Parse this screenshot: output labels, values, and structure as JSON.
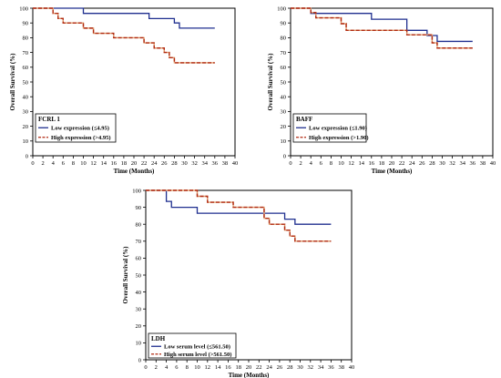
{
  "colors": {
    "low": "#1f2f8f",
    "high": "#b12a12",
    "high_dash_inner": "#e0a070"
  },
  "chart_data": [
    {
      "type": "line",
      "subtype": "kaplan-meier",
      "panel": "top-left",
      "title": "",
      "xlabel": "Time (Months)",
      "ylabel": "Overall Survival   (%)",
      "xlim": [
        0,
        40
      ],
      "ylim": [
        0,
        100
      ],
      "xticks": [
        "0",
        "2",
        "4",
        "6",
        "8",
        "10",
        "12",
        "14",
        "16",
        "18",
        "20",
        "22",
        "24",
        "26",
        "28",
        "30",
        "32",
        "34",
        "36",
        "38",
        "40"
      ],
      "yticks": [
        "0",
        "10",
        "20",
        "30",
        "40",
        "50",
        "60",
        "70",
        "80",
        "90",
        "100"
      ],
      "grid": false,
      "legend": {
        "placement": "bottom-left",
        "title": "FCRL 1",
        "entries": [
          "Low expression (≤4.95)",
          "High expression  (>4.95)"
        ]
      },
      "series": [
        {
          "name": "Low expression (≤4.95)",
          "style": "solid",
          "steps": [
            [
              0,
              100
            ],
            [
              10,
              96.5
            ],
            [
              23,
              93
            ],
            [
              28,
              90
            ],
            [
              29,
              86.5
            ],
            [
              36,
              86.5
            ]
          ]
        },
        {
          "name": "High expression  (>4.95)",
          "style": "dashed",
          "steps": [
            [
              0,
              100
            ],
            [
              4,
              96.5
            ],
            [
              5,
              93
            ],
            [
              6,
              90
            ],
            [
              10,
              86.5
            ],
            [
              12,
              83
            ],
            [
              16,
              80
            ],
            [
              22,
              76.5
            ],
            [
              24,
              73
            ],
            [
              26,
              70
            ],
            [
              27,
              66.5
            ],
            [
              28,
              63
            ],
            [
              36,
              63
            ]
          ]
        }
      ]
    },
    {
      "type": "line",
      "subtype": "kaplan-meier",
      "panel": "top-right",
      "title": "",
      "xlabel": "Time (Months)",
      "ylabel": "Overall Survival   (%)",
      "xlim": [
        0,
        40
      ],
      "ylim": [
        0,
        100
      ],
      "xticks": [
        "0",
        "2",
        "4",
        "6",
        "8",
        "10",
        "12",
        "14",
        "16",
        "18",
        "20",
        "22",
        "24",
        "26",
        "28",
        "30",
        "32",
        "34",
        "36",
        "38",
        "40"
      ],
      "yticks": [
        "0",
        "10",
        "20",
        "30",
        "40",
        "50",
        "60",
        "70",
        "80",
        "90",
        "100"
      ],
      "grid": false,
      "legend": {
        "placement": "bottom-left",
        "title": "BAFF",
        "entries": [
          "Low expression  (≤1.90)",
          "High expression  (>1.90)"
        ]
      },
      "series": [
        {
          "name": "Low expression  (≤1.90)",
          "style": "solid",
          "steps": [
            [
              0,
              100
            ],
            [
              4,
              96.5
            ],
            [
              16,
              92.5
            ],
            [
              23,
              85
            ],
            [
              27,
              81.5
            ],
            [
              29,
              77.5
            ],
            [
              36,
              77.5
            ]
          ]
        },
        {
          "name": "High expression  (>1.90)",
          "style": "dashed",
          "steps": [
            [
              0,
              100
            ],
            [
              4,
              97
            ],
            [
              5,
              93.5
            ],
            [
              10,
              89.5
            ],
            [
              11,
              85
            ],
            [
              23,
              82
            ],
            [
              28,
              76.5
            ],
            [
              29,
              73
            ],
            [
              36,
              73
            ]
          ]
        }
      ]
    },
    {
      "type": "line",
      "subtype": "kaplan-meier",
      "panel": "bottom-center",
      "title": "",
      "xlabel": "Time (Months)",
      "ylabel": "Overall Survival   (%)",
      "xlim": [
        0,
        40
      ],
      "ylim": [
        0,
        100
      ],
      "xticks": [
        "0",
        "2",
        "4",
        "6",
        "8",
        "10",
        "12",
        "14",
        "16",
        "18",
        "20",
        "22",
        "24",
        "26",
        "28",
        "30",
        "32",
        "34",
        "36",
        "38",
        "40"
      ],
      "yticks": [
        "0",
        "10",
        "20",
        "30",
        "40",
        "50",
        "60",
        "70",
        "80",
        "90",
        "100"
      ],
      "grid": false,
      "legend": {
        "placement": "bottom-left",
        "title": "LDH",
        "entries": [
          "Low serum level (≤561.50)",
          "High serum level (>561.50)"
        ]
      },
      "series": [
        {
          "name": "Low serum level (≤561.50)",
          "style": "solid",
          "steps": [
            [
              0,
              100
            ],
            [
              4,
              93.5
            ],
            [
              5,
              90
            ],
            [
              10,
              86.5
            ],
            [
              27,
              83
            ],
            [
              29,
              80
            ],
            [
              36,
              80
            ]
          ]
        },
        {
          "name": "High serum level (>561.50)",
          "style": "dashed",
          "steps": [
            [
              0,
              100
            ],
            [
              10,
              96.5
            ],
            [
              12,
              93
            ],
            [
              17,
              90
            ],
            [
              23,
              83.5
            ],
            [
              24,
              80
            ],
            [
              27,
              76.5
            ],
            [
              28,
              73
            ],
            [
              29,
              70
            ],
            [
              36,
              70
            ]
          ]
        }
      ]
    }
  ]
}
